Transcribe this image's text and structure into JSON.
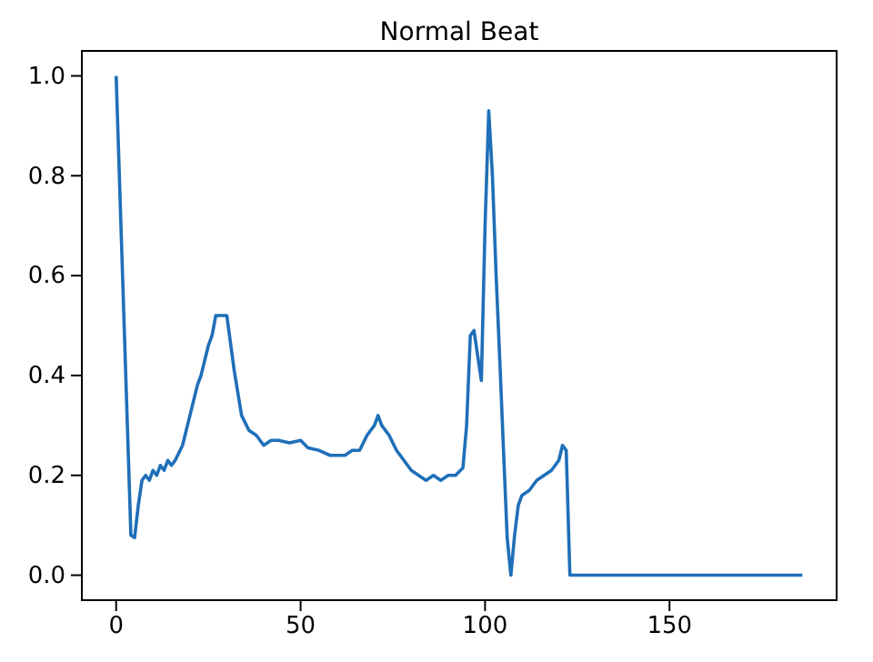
{
  "chart_data": {
    "type": "line",
    "title": "Normal Beat",
    "xlim": [
      -9.3,
      195.3
    ],
    "xticks": [
      0,
      50,
      100,
      150
    ],
    "ylim": [
      -0.05,
      1.05
    ],
    "yticks": [
      {
        "value": 0,
        "label": "0.0"
      },
      {
        "value": 0.2,
        "label": "0.2"
      },
      {
        "value": 0.4,
        "label": "0.4"
      },
      {
        "value": 0.6,
        "label": "0.6"
      },
      {
        "value": 0.8,
        "label": "0.8"
      },
      {
        "value": 1,
        "label": "1.0"
      }
    ],
    "grid": false,
    "series": [
      {
        "color": "#1f6fb8",
        "x": [
          0,
          4,
          5,
          6,
          7,
          8,
          9,
          10,
          11,
          12,
          13,
          14,
          15,
          16,
          18,
          20,
          22,
          23,
          25,
          26,
          27,
          29,
          30,
          32,
          34,
          36,
          38,
          40,
          42,
          44,
          47,
          50,
          52,
          55,
          58,
          62,
          64,
          66,
          68,
          70,
          71,
          72,
          74,
          76,
          78,
          80,
          82,
          84,
          86,
          88,
          90,
          92,
          94,
          95,
          96,
          97,
          98,
          99,
          100,
          101,
          102,
          103,
          104,
          105,
          106,
          107,
          108,
          109,
          110,
          112,
          114,
          116,
          118,
          120,
          121,
          122,
          123,
          186
        ],
        "values": [
          1.0,
          0.08,
          0.075,
          0.14,
          0.19,
          0.2,
          0.19,
          0.21,
          0.2,
          0.22,
          0.21,
          0.23,
          0.22,
          0.23,
          0.26,
          0.32,
          0.38,
          0.4,
          0.46,
          0.48,
          0.52,
          0.52,
          0.52,
          0.41,
          0.32,
          0.29,
          0.28,
          0.26,
          0.27,
          0.27,
          0.265,
          0.27,
          0.255,
          0.25,
          0.24,
          0.24,
          0.25,
          0.25,
          0.28,
          0.3,
          0.32,
          0.3,
          0.28,
          0.25,
          0.23,
          0.21,
          0.2,
          0.19,
          0.2,
          0.19,
          0.2,
          0.2,
          0.215,
          0.3,
          0.48,
          0.49,
          0.44,
          0.39,
          0.7,
          0.93,
          0.8,
          0.6,
          0.43,
          0.25,
          0.075,
          0.0,
          0.08,
          0.14,
          0.16,
          0.17,
          0.19,
          0.2,
          0.21,
          0.23,
          0.26,
          0.25,
          0.0,
          0.0
        ]
      }
    ]
  }
}
